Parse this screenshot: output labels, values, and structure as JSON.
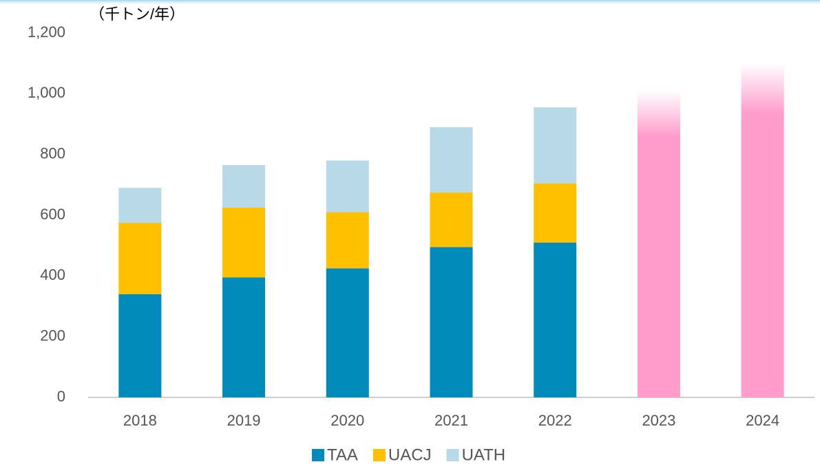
{
  "chart_data": {
    "type": "stacked_bar",
    "y_label": "（千トン/年）",
    "categories": [
      "2018",
      "2019",
      "2020",
      "2021",
      "2022",
      "2023",
      "2024"
    ],
    "series": [
      {
        "name": "TAA",
        "color": "#008bba",
        "values": [
          340,
          395,
          425,
          495,
          510,
          null,
          null
        ]
      },
      {
        "name": "UACJ",
        "color": "#ffc000",
        "values": [
          235,
          230,
          185,
          180,
          195,
          null,
          null
        ]
      },
      {
        "name": "UATH",
        "color": "#b8d9e8",
        "values": [
          115,
          140,
          170,
          215,
          250,
          null,
          null
        ]
      },
      {
        "color": "#ff9ccc",
        "values": [
          null,
          null,
          null,
          null,
          null,
          1010,
          1100
        ]
      }
    ],
    "ylim": [
      0,
      1200
    ],
    "yticks": [
      0,
      {
        "value": 200,
        "label": "200"
      },
      400,
      600,
      800,
      {
        "value": 1000,
        "label": "1,000"
      },
      {
        "value": 1200,
        "label": "1,200"
      }
    ]
  }
}
